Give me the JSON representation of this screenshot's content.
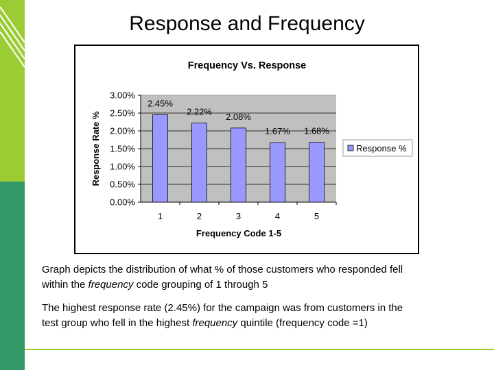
{
  "slide": {
    "title": "Response and Frequency",
    "bullet1": {
      "line1": "Graph depicts the distribution of what % of those customers who responded fell",
      "line2_pre": "within the ",
      "line2_em": "frequency",
      "line2_post": " code grouping of 1 through 5"
    },
    "bullet2": {
      "line1": "The highest response rate (2.45%) for the campaign was from customers in the",
      "line2_pre": "test group who fell in the highest ",
      "line2_em": "frequency",
      "line2_post": " quintile (frequency code =1)"
    }
  },
  "colors": {
    "accent_lime": "#9ccc33",
    "accent_green": "#339966",
    "bar_fill": "#9999ff",
    "plot_bg": "#c0c0c0"
  },
  "chart_data": {
    "type": "bar",
    "title": "Frequency Vs. Response",
    "xlabel": "Frequency Code 1-5",
    "ylabel": "Response Rate %",
    "categories": [
      "1",
      "2",
      "3",
      "4",
      "5"
    ],
    "series": [
      {
        "name": "Response %",
        "values": [
          2.45,
          2.22,
          2.08,
          1.67,
          1.68
        ]
      }
    ],
    "data_labels": [
      "2.45%",
      "2.22%",
      "2.08%",
      "1.67%",
      "1.68%"
    ],
    "yticks": [
      "0.00%",
      "0.50%",
      "1.00%",
      "1.50%",
      "2.00%",
      "2.50%",
      "3.00%"
    ],
    "ylim": [
      0,
      3
    ],
    "grid": true,
    "legend_position": "right"
  }
}
